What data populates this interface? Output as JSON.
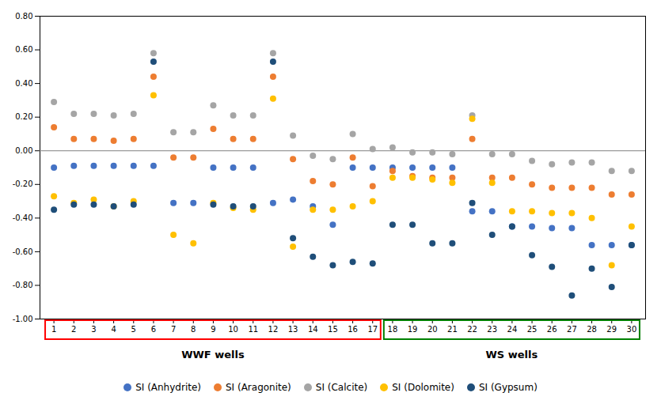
{
  "chart_data": {
    "type": "scatter",
    "x": [
      1,
      2,
      3,
      4,
      5,
      6,
      7,
      8,
      9,
      10,
      11,
      12,
      13,
      14,
      15,
      16,
      17,
      18,
      19,
      20,
      21,
      22,
      23,
      24,
      25,
      26,
      27,
      28,
      29,
      30
    ],
    "series": [
      {
        "name": "SI (Anhydrite)",
        "color": "#4472C4",
        "marker": "circle",
        "values": [
          -0.1,
          -0.09,
          -0.09,
          -0.09,
          -0.09,
          -0.09,
          -0.31,
          -0.31,
          -0.1,
          -0.1,
          -0.1,
          -0.31,
          -0.29,
          -0.33,
          -0.44,
          -0.1,
          -0.1,
          -0.1,
          -0.1,
          -0.1,
          -0.1,
          -0.36,
          -0.36,
          -0.45,
          -0.45,
          -0.46,
          -0.46,
          -0.56,
          -0.56,
          -0.56
        ]
      },
      {
        "name": "SI (Aragonite)",
        "color": "#ED7D31",
        "marker": "circle",
        "values": [
          0.14,
          0.07,
          0.07,
          0.06,
          0.07,
          0.44,
          -0.04,
          -0.04,
          0.13,
          0.07,
          0.07,
          0.44,
          -0.05,
          -0.18,
          -0.2,
          -0.04,
          -0.21,
          -0.12,
          -0.15,
          -0.16,
          -0.16,
          0.07,
          -0.16,
          -0.16,
          -0.2,
          -0.22,
          -0.22,
          -0.22,
          -0.26,
          -0.26
        ]
      },
      {
        "name": "SI (Calcite)",
        "color": "#A5A5A5",
        "marker": "circle",
        "values": [
          0.29,
          0.22,
          0.22,
          0.21,
          0.22,
          0.58,
          0.11,
          0.11,
          0.27,
          0.21,
          0.21,
          0.58,
          0.09,
          -0.03,
          -0.05,
          0.1,
          0.01,
          0.02,
          -0.01,
          -0.01,
          -0.02,
          0.21,
          -0.02,
          -0.02,
          -0.06,
          -0.08,
          -0.07,
          -0.07,
          -0.12,
          -0.12
        ]
      },
      {
        "name": "SI (Dolomite)",
        "color": "#FFC000",
        "marker": "circle",
        "values": [
          -0.27,
          -0.31,
          -0.29,
          -0.33,
          -0.3,
          0.33,
          -0.5,
          -0.55,
          -0.31,
          -0.34,
          -0.35,
          0.31,
          -0.57,
          -0.35,
          -0.35,
          -0.33,
          -0.3,
          -0.16,
          -0.16,
          -0.17,
          -0.19,
          0.19,
          -0.19,
          -0.36,
          -0.36,
          -0.37,
          -0.37,
          -0.4,
          -0.68,
          -0.45
        ]
      },
      {
        "name": "SI (Gypsum)",
        "color": "#1F4E79",
        "marker": "circle",
        "values": [
          -0.35,
          -0.32,
          -0.32,
          -0.33,
          -0.32,
          0.53,
          null,
          null,
          -0.32,
          -0.33,
          -0.33,
          0.53,
          -0.52,
          -0.63,
          -0.68,
          -0.66,
          -0.67,
          -0.44,
          -0.44,
          -0.55,
          -0.55,
          -0.31,
          -0.5,
          -0.45,
          -0.62,
          -0.69,
          -0.86,
          -0.7,
          -0.81,
          -0.56
        ]
      }
    ],
    "xlim": [
      0.3,
      30.7
    ],
    "xticks": [
      1,
      2,
      3,
      4,
      5,
      6,
      7,
      8,
      9,
      10,
      11,
      12,
      13,
      14,
      15,
      16,
      17,
      18,
      19,
      20,
      21,
      22,
      23,
      24,
      25,
      26,
      27,
      28,
      29,
      30
    ],
    "ylim": [
      -1.0,
      0.8
    ],
    "yticks": [
      {
        "value": -1.0,
        "label": "-1.00"
      },
      {
        "value": -0.8,
        "label": "-0.80"
      },
      {
        "value": -0.6,
        "label": "-0.60"
      },
      {
        "value": -0.4,
        "label": "-0.40"
      },
      {
        "value": -0.2,
        "label": "-0.20"
      },
      {
        "value": 0.0,
        "label": "0.00"
      },
      {
        "value": 0.2,
        "label": "0.20"
      },
      {
        "value": 0.4,
        "label": "0.40"
      },
      {
        "value": 0.6,
        "label": "0.60"
      },
      {
        "value": 0.8,
        "label": "0.80"
      }
    ],
    "hlines": [
      {
        "y": 0,
        "color": "gray"
      }
    ],
    "groups": [
      {
        "label": "WWF wells",
        "color": "red",
        "start": 1,
        "end": 17
      },
      {
        "label": "WS wells",
        "color": "green",
        "start": 18,
        "end": 30
      }
    ],
    "grid": false,
    "legend": "bottom"
  }
}
